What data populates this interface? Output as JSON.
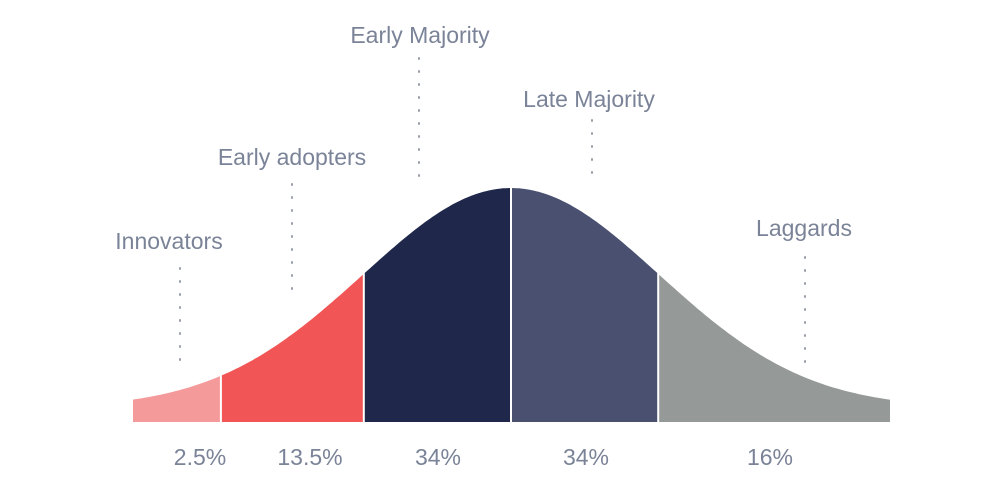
{
  "chart_data": {
    "type": "area",
    "title": "",
    "xlabel": "",
    "ylabel": "",
    "distribution": "normal",
    "segments": [
      {
        "name": "Innovators",
        "percent_label": "2.5%",
        "value": 2.5,
        "color": "#f59a9a"
      },
      {
        "name": "Early adopters",
        "percent_label": "13.5%",
        "value": 13.5,
        "color": "#f25555"
      },
      {
        "name": "Early Majority",
        "percent_label": "34%",
        "value": 34,
        "color": "#1f284b"
      },
      {
        "name": "Late Majority",
        "percent_label": "34%",
        "value": 34,
        "color": "#4a5170"
      },
      {
        "name": "Laggards",
        "percent_label": "16%",
        "value": 16,
        "color": "#959a99"
      }
    ]
  }
}
